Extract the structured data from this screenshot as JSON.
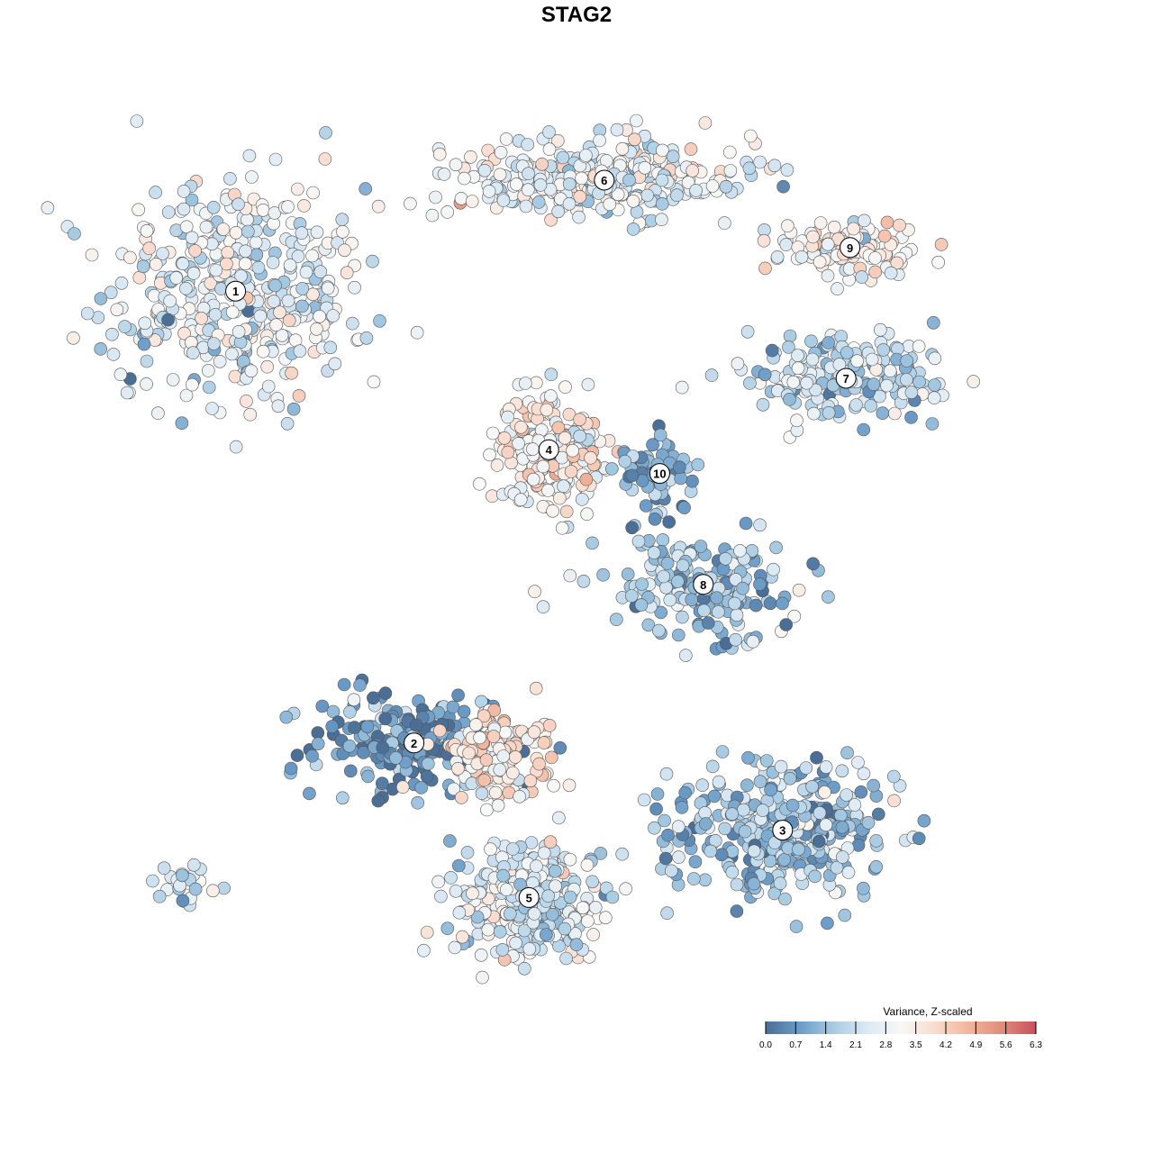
{
  "chart_data": {
    "type": "scatter",
    "title": "STAG2",
    "legend": {
      "title": "Variance, Z-scaled",
      "ticks": [
        "0.0",
        "0.7",
        "1.4",
        "2.1",
        "2.8",
        "3.5",
        "4.2",
        "4.9",
        "5.6",
        "6.3"
      ],
      "range": [
        0.0,
        6.3
      ],
      "colors": [
        "#4a6e96",
        "#6b9cc8",
        "#a7cbe3",
        "#dbe9f4",
        "#f8f8f6",
        "#f9dccf",
        "#f1b69c",
        "#e08c78",
        "#c9505c"
      ],
      "placement": "bottom-right"
    },
    "clusters": [
      {
        "label": "1",
        "x": -8.6,
        "y": 7.2,
        "sx": 3.0,
        "sy": 2.6,
        "mean": 2.6,
        "n": 420
      },
      {
        "label": "2",
        "x": -4.1,
        "y": -4.2,
        "sx": 2.3,
        "sy": 1.2,
        "mean": 0.55,
        "n": 210
      },
      {
        "label": "3",
        "x": 5.2,
        "y": -6.4,
        "sx": 2.6,
        "sy": 1.6,
        "mean": 1.6,
        "n": 360
      },
      {
        "label": "4",
        "x": -0.7,
        "y": 3.2,
        "sx": 1.2,
        "sy": 1.2,
        "mean": 3.3,
        "n": 230
      },
      {
        "label": "5",
        "x": -1.2,
        "y": -8.1,
        "sx": 1.8,
        "sy": 1.4,
        "mean": 2.4,
        "n": 300
      },
      {
        "label": "6",
        "x": 0.7,
        "y": 10.0,
        "sx": 3.5,
        "sy": 0.9,
        "mean": 2.7,
        "n": 330
      },
      {
        "label": "7",
        "x": 6.8,
        "y": 5.0,
        "sx": 2.2,
        "sy": 0.9,
        "mean": 2.0,
        "n": 200
      },
      {
        "label": "8",
        "x": 3.2,
        "y": -0.2,
        "sx": 2.2,
        "sy": 1.1,
        "mean": 1.5,
        "n": 190
      },
      {
        "label": "9",
        "x": 6.9,
        "y": 8.3,
        "sx": 1.6,
        "sy": 0.6,
        "mean": 3.3,
        "n": 110
      },
      {
        "label": "10",
        "x": 2.1,
        "y": 2.6,
        "sx": 0.9,
        "sy": 0.9,
        "mean": 0.9,
        "n": 70
      },
      {
        "label": "",
        "x": -2.0,
        "y": -4.5,
        "sx": 1.2,
        "sy": 1.0,
        "mean": 3.5,
        "n": 160
      },
      {
        "label": "",
        "x": -9.8,
        "y": -7.8,
        "sx": 0.8,
        "sy": 0.4,
        "mean": 2.2,
        "n": 25
      }
    ],
    "xlim": [
      -14,
      14
    ],
    "ylim": [
      -14,
      14
    ],
    "grid": false
  }
}
